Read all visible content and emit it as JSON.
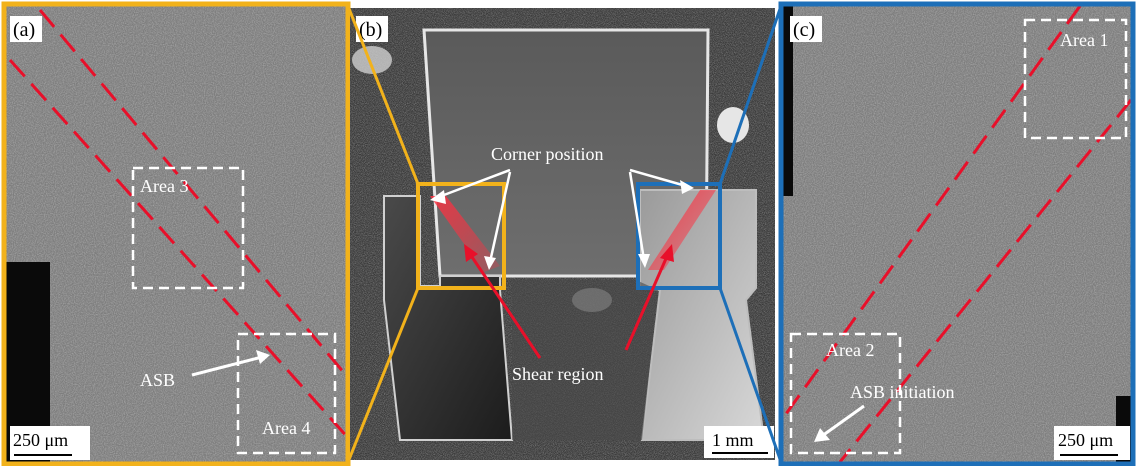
{
  "panels": {
    "a": {
      "label": "(a)",
      "scale_bar": "250 μm",
      "annotations": {
        "area3": "Area 3",
        "area4": "Area 4",
        "asb": "ASB"
      }
    },
    "b": {
      "label": "(b)",
      "scale_bar": "1 mm",
      "annotations": {
        "corner": "Corner position",
        "shear": "Shear region"
      }
    },
    "c": {
      "label": "(c)",
      "scale_bar": "250 μm",
      "annotations": {
        "area1": "Area 1",
        "area2": "Area 2",
        "asb_init": "ASB initiation"
      }
    }
  },
  "colors": {
    "panel_a_frame": "#F2B21B",
    "panel_c_frame": "#1D6FB8",
    "band_lines": "#E8102A",
    "area_boxes": "#FFFFFF"
  }
}
